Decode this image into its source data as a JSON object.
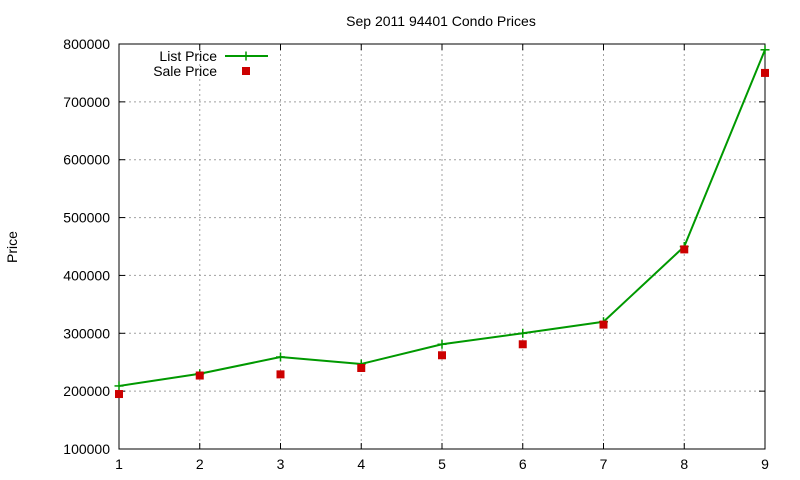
{
  "chart_data": {
    "type": "line",
    "title": "Sep 2011 94401 Condo Prices",
    "xlabel": "",
    "ylabel": "Price",
    "x": [
      1,
      2,
      3,
      4,
      5,
      6,
      7,
      8,
      9
    ],
    "x_ticks": [
      "1",
      "2",
      "3",
      "4",
      "5",
      "6",
      "7",
      "8",
      "9"
    ],
    "y_ticks": [
      "100000",
      "200000",
      "300000",
      "400000",
      "500000",
      "600000",
      "700000",
      "800000"
    ],
    "xlim": [
      1,
      9
    ],
    "ylim": [
      100000,
      800000
    ],
    "grid": true,
    "legend_position": "top-left",
    "series": [
      {
        "name": "List Price",
        "style": "line-with-plus-markers",
        "color": "#009900",
        "values": [
          209000,
          230000,
          259000,
          247000,
          281000,
          300000,
          320000,
          450000,
          790000
        ]
      },
      {
        "name": "Sale Price",
        "style": "square-markers",
        "color": "#cc0000",
        "values": [
          195000,
          227000,
          229000,
          240000,
          262000,
          281000,
          315000,
          445000,
          750000
        ]
      }
    ]
  }
}
